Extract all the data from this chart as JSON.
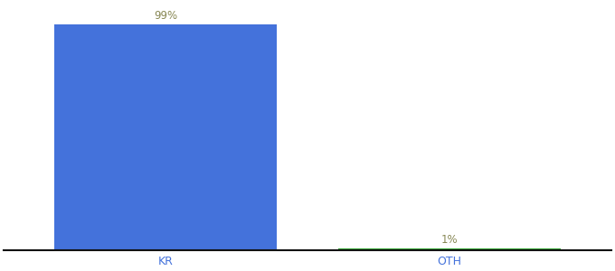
{
  "categories": [
    "KR",
    "OTH"
  ],
  "values": [
    99,
    1
  ],
  "bar_colors": [
    "#4472DB",
    "#33AA33"
  ],
  "label_colors": [
    "#888855",
    "#888855"
  ],
  "label_texts": [
    "99%",
    "1%"
  ],
  "ylim": [
    0,
    108
  ],
  "background_color": "#ffffff",
  "axis_line_color": "#111111",
  "tick_label_color": "#4472DB",
  "bar_width": 0.55,
  "x_positions": [
    0.3,
    1.0
  ],
  "xlim": [
    -0.1,
    1.4
  ],
  "figsize": [
    6.8,
    3.0
  ],
  "dpi": 100,
  "label_fontsize": 8.5,
  "tick_fontsize": 9
}
